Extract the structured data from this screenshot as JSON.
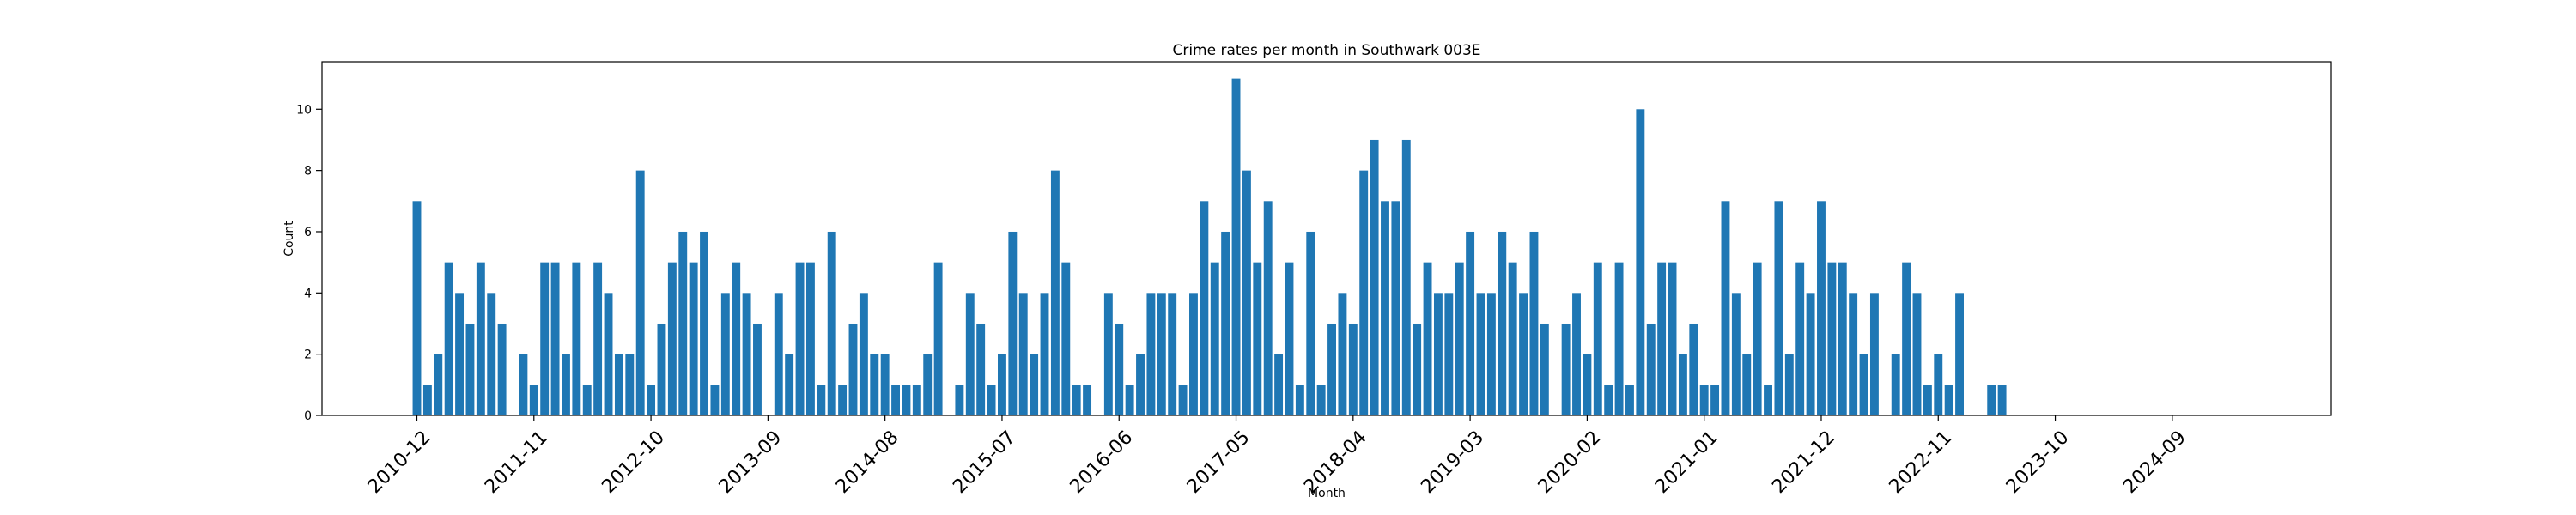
{
  "chart_data": {
    "type": "bar",
    "title": "Crime rates per month in Southwark 003E",
    "xlabel": "Month",
    "ylabel": "Count",
    "ylim": [
      0,
      11.55
    ],
    "y_ticks": [
      0,
      2,
      4,
      6,
      8,
      10
    ],
    "x_tick_labels": [
      "2010-12",
      "2011-11",
      "2012-10",
      "2013-09",
      "2014-08",
      "2015-07",
      "2016-06",
      "2017-05",
      "2018-04",
      "2019-03",
      "2020-02",
      "2021-01",
      "2021-12",
      "2022-11",
      "2023-10",
      "2024-09"
    ],
    "bar_color": "#1f77b4",
    "start_month": "2010-12",
    "values": [
      7,
      1,
      2,
      5,
      4,
      3,
      5,
      4,
      3,
      0,
      2,
      1,
      5,
      5,
      2,
      5,
      1,
      5,
      4,
      2,
      2,
      8,
      1,
      3,
      5,
      6,
      5,
      6,
      1,
      4,
      5,
      4,
      3,
      0,
      4,
      2,
      5,
      5,
      1,
      6,
      1,
      3,
      4,
      2,
      2,
      1,
      1,
      1,
      2,
      5,
      0,
      1,
      4,
      3,
      1,
      2,
      6,
      4,
      2,
      4,
      8,
      5,
      1,
      1,
      0,
      4,
      3,
      1,
      2,
      4,
      4,
      4,
      1,
      4,
      7,
      5,
      6,
      11,
      8,
      5,
      7,
      2,
      5,
      1,
      6,
      1,
      3,
      4,
      3,
      8,
      9,
      7,
      7,
      9,
      3,
      5,
      4,
      4,
      5,
      6,
      4,
      4,
      6,
      5,
      4,
      6,
      3,
      0,
      3,
      4,
      2,
      5,
      1,
      5,
      1,
      10,
      3,
      5,
      5,
      2,
      3,
      1,
      1,
      7,
      4,
      2,
      5,
      1,
      7,
      2,
      5,
      4,
      7,
      5,
      5,
      4,
      2,
      4,
      0,
      2,
      5,
      4,
      1,
      2,
      1,
      4,
      0,
      0,
      1,
      1
    ]
  }
}
